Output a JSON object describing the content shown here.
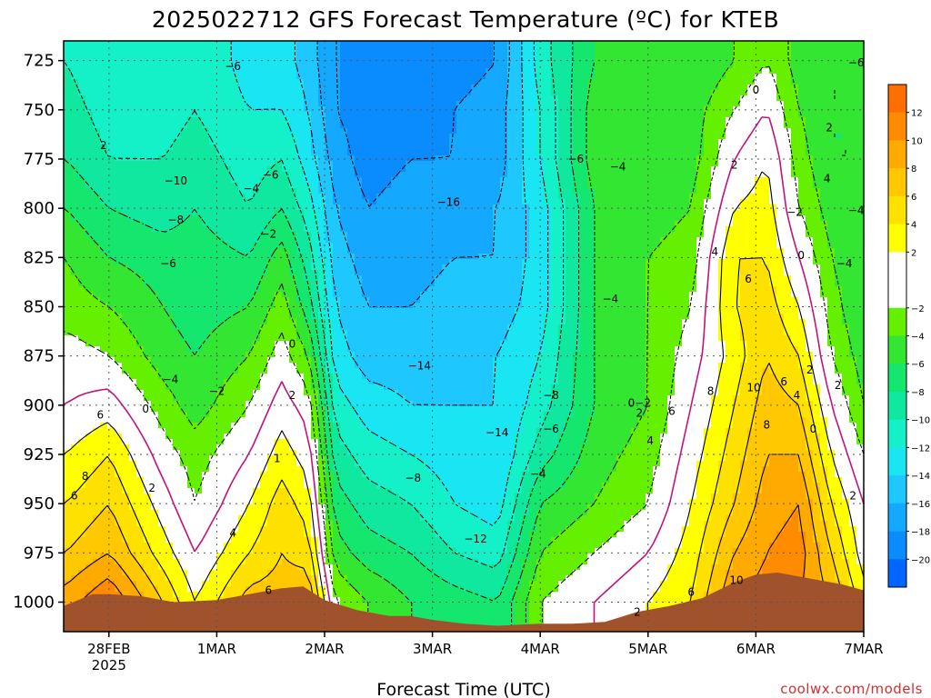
{
  "chart_data": {
    "type": "heatmap",
    "title": "2025022712 GFS Forecast Temperature (ºC) for KTEB",
    "xlabel": "Forecast Time (UTC)",
    "ylabel": "",
    "y_axis": {
      "unit": "hPa",
      "inverted": true,
      "ylim": [
        1015,
        715
      ],
      "ticks": [
        725,
        750,
        775,
        800,
        825,
        850,
        875,
        900,
        925,
        950,
        975,
        1000
      ]
    },
    "x_axis": {
      "unit": "days since 2025-02-27",
      "xlim": [
        0.58,
        8.0
      ],
      "ticks": [
        {
          "label": "28FEB",
          "sub": "2025",
          "x": 1.0
        },
        {
          "label": "1MAR",
          "sub": "",
          "x": 2.0
        },
        {
          "label": "2MAR",
          "sub": "",
          "x": 3.0
        },
        {
          "label": "3MAR",
          "sub": "",
          "x": 4.0
        },
        {
          "label": "4MAR",
          "sub": "",
          "x": 5.0
        },
        {
          "label": "5MAR",
          "sub": "",
          "x": 6.0
        },
        {
          "label": "6MAR",
          "sub": "",
          "x": 7.0
        },
        {
          "label": "7MAR",
          "sub": "",
          "x": 8.0
        }
      ]
    },
    "grid": true,
    "colorbar": {
      "levels": [
        -22,
        -20,
        -18,
        -16,
        -14,
        -12,
        -10,
        -8,
        -6,
        -4,
        -2,
        0,
        2,
        4,
        6,
        8,
        10,
        12,
        14
      ],
      "tick_labels": [
        "-20",
        "-18",
        "-16",
        "-14",
        "-12",
        "-10",
        "-8",
        "-6",
        "-4",
        "-2",
        "2",
        "4",
        "6",
        "8",
        "10",
        "12"
      ],
      "colors": [
        "#0066ff",
        "#0a8cff",
        "#14a8ff",
        "#1ec8ff",
        "#19e6f2",
        "#14f0c8",
        "#10e8a0",
        "#14e66e",
        "#32e632",
        "#64f000",
        "#ffffff",
        "#ffffff",
        "#ffff00",
        "#ffe100",
        "#ffc800",
        "#ffaa00",
        "#ff8c00",
        "#ff6e00"
      ]
    },
    "surface_color": "#a0522d",
    "surface_pressure": [
      [
        0.58,
        1002
      ],
      [
        0.85,
        996
      ],
      [
        1.0,
        996
      ],
      [
        1.3,
        997
      ],
      [
        1.6,
        1000
      ],
      [
        2.0,
        999
      ],
      [
        2.3,
        996
      ],
      [
        2.6,
        993
      ],
      [
        2.8,
        992
      ],
      [
        3.0,
        999
      ],
      [
        3.3,
        1004
      ],
      [
        3.6,
        1007
      ],
      [
        3.8,
        1007
      ],
      [
        4.0,
        1009
      ],
      [
        4.3,
        1011
      ],
      [
        4.6,
        1012
      ],
      [
        5.0,
        1011
      ],
      [
        5.3,
        1011
      ],
      [
        5.6,
        1010
      ],
      [
        5.9,
        1005
      ],
      [
        6.2,
        1002
      ],
      [
        6.5,
        998
      ],
      [
        6.8,
        990
      ],
      [
        7.0,
        986
      ],
      [
        7.2,
        985
      ],
      [
        7.5,
        988
      ],
      [
        7.8,
        991
      ],
      [
        8.0,
        994
      ]
    ],
    "temperature_field": {
      "note": "approximate temperature (°C) by time (rows) and pressure (columns)",
      "pressure_levels": [
        1000,
        975,
        950,
        925,
        900,
        875,
        850,
        825,
        800,
        775,
        750,
        725
      ],
      "times": [
        0.6,
        1.0,
        1.5,
        1.8,
        2.3,
        2.6,
        2.85,
        3.1,
        3.4,
        3.8,
        4.2,
        4.6,
        5.0,
        5.5,
        6.0,
        6.4,
        6.8,
        7.1,
        7.4,
        7.7,
        8.0
      ],
      "values": [
        [
          9,
          6,
          4,
          2,
          0,
          -1,
          -3,
          -4,
          -6,
          -8,
          -9,
          -10
        ],
        [
          12,
          8,
          6,
          4,
          1,
          -2,
          -4,
          -6,
          -8,
          -10,
          -11,
          -12
        ],
        [
          6,
          3,
          1,
          -1,
          -3,
          -5,
          -6,
          -7,
          -9,
          -10,
          -11,
          -12
        ],
        [
          2,
          0,
          -2,
          -3,
          -5,
          -6,
          -7,
          -7,
          -8,
          -9,
          -10,
          -10
        ],
        [
          7,
          4,
          2,
          0,
          -2,
          -4,
          -6,
          -8,
          -10,
          -11,
          -12,
          -13
        ],
        [
          7,
          6,
          5,
          3,
          1,
          -1,
          -3,
          -5,
          -8,
          -10,
          -12,
          -13
        ],
        [
          8,
          5,
          3,
          1,
          -1,
          -4,
          -7,
          -9,
          -11,
          -13,
          -14,
          -15
        ],
        [
          -2,
          -5,
          -7,
          -9,
          -11,
          -13,
          -14,
          -15,
          -16,
          -17,
          -18,
          -18
        ],
        [
          -4,
          -7,
          -9,
          -11,
          -13,
          -15,
          -16,
          -17,
          -18,
          -19,
          -19,
          -20
        ],
        [
          -6,
          -8,
          -10,
          -12,
          -14,
          -15,
          -16,
          -17,
          -17,
          -18,
          -19,
          -19
        ],
        [
          -7,
          -10,
          -12,
          -13,
          -14,
          -15,
          -15,
          -16,
          -17,
          -18,
          -18,
          -19
        ],
        [
          -8,
          -11,
          -13,
          -14,
          -14,
          -14,
          -15,
          -16,
          -16,
          -17,
          -17,
          -18
        ],
        [
          -2,
          -4,
          -6,
          -9,
          -11,
          -12,
          -13,
          -13,
          -13,
          -12,
          -12,
          -11
        ],
        [
          0,
          -2,
          -4,
          -5,
          -6,
          -6,
          -6,
          -6,
          -6,
          -5,
          -5,
          -6
        ],
        [
          2,
          0,
          -2,
          -3,
          -4,
          -4,
          -4,
          -4,
          -5,
          -5,
          -6,
          -6
        ],
        [
          4,
          3,
          2,
          1,
          0,
          -1,
          -2,
          -3,
          -4,
          -5,
          -5,
          -6
        ],
        [
          10,
          8,
          6,
          5,
          4,
          3,
          4,
          4,
          2,
          0,
          -2,
          -4
        ],
        [
          11,
          10,
          9,
          8,
          7,
          6,
          5,
          4,
          3,
          2,
          0,
          -2
        ],
        [
          10,
          11,
          10,
          8,
          6,
          4,
          2,
          0,
          -2,
          -3,
          -4,
          -5
        ],
        [
          8,
          6,
          4,
          2,
          0,
          -2,
          -3,
          -4,
          -5,
          -6,
          -6,
          -6
        ],
        [
          3,
          1,
          0,
          -2,
          -4,
          -5,
          -6,
          -6,
          -6,
          -6,
          -6,
          -6
        ]
      ]
    },
    "contour_labels": [
      {
        "text": "-6",
        "x": 2.15,
        "y": 728
      },
      {
        "text": "0",
        "x": 7.0,
        "y": 740
      },
      {
        "text": "-6",
        "x": 7.93,
        "y": 726
      },
      {
        "text": "2",
        "x": 7.68,
        "y": 759
      },
      {
        "text": "2",
        "x": 0.95,
        "y": 768
      },
      {
        "text": "-10",
        "x": 1.62,
        "y": 786
      },
      {
        "text": "-6",
        "x": 2.5,
        "y": 783
      },
      {
        "text": "-4",
        "x": 2.32,
        "y": 790
      },
      {
        "text": "-6",
        "x": 5.33,
        "y": 775
      },
      {
        "text": "-4",
        "x": 5.72,
        "y": 779
      },
      {
        "text": "2",
        "x": 6.8,
        "y": 778
      },
      {
        "text": "4",
        "x": 7.66,
        "y": 785
      },
      {
        "text": "-16",
        "x": 4.15,
        "y": 797
      },
      {
        "text": "-2",
        "x": 7.36,
        "y": 802
      },
      {
        "text": "-4",
        "x": 7.93,
        "y": 801
      },
      {
        "text": "-8",
        "x": 1.62,
        "y": 806
      },
      {
        "text": "-2",
        "x": 2.48,
        "y": 813
      },
      {
        "text": "4",
        "x": 6.62,
        "y": 822
      },
      {
        "text": "-6",
        "x": 1.55,
        "y": 828
      },
      {
        "text": "0",
        "x": 7.42,
        "y": 824
      },
      {
        "text": "-4",
        "x": 7.82,
        "y": 828
      },
      {
        "text": "6",
        "x": 6.93,
        "y": 836
      },
      {
        "text": "-4",
        "x": 5.65,
        "y": 846
      },
      {
        "text": "0",
        "x": 2.7,
        "y": 869
      },
      {
        "text": "-14",
        "x": 3.88,
        "y": 880
      },
      {
        "text": "2",
        "x": 7.5,
        "y": 882
      },
      {
        "text": "-4",
        "x": 1.57,
        "y": 887
      },
      {
        "text": "2",
        "x": 7.76,
        "y": 890
      },
      {
        "text": "-2",
        "x": 2.0,
        "y": 893
      },
      {
        "text": "8",
        "x": 6.58,
        "y": 893
      },
      {
        "text": "10",
        "x": 6.98,
        "y": 891
      },
      {
        "text": "6",
        "x": 7.26,
        "y": 888
      },
      {
        "text": "4",
        "x": 7.38,
        "y": 895
      },
      {
        "text": "-8",
        "x": 5.1,
        "y": 895
      },
      {
        "text": "0-2",
        "x": 5.92,
        "y": 899
      },
      {
        "text": "2",
        "x": 2.7,
        "y": 895
      },
      {
        "text": "0",
        "x": 1.34,
        "y": 902
      },
      {
        "text": "6",
        "x": 6.22,
        "y": 903
      },
      {
        "text": "2",
        "x": 5.92,
        "y": 904
      },
      {
        "text": "6",
        "x": 0.92,
        "y": 905
      },
      {
        "text": "8",
        "x": 7.1,
        "y": 910
      },
      {
        "text": "0",
        "x": 7.53,
        "y": 912
      },
      {
        "text": "-6",
        "x": 5.1,
        "y": 912
      },
      {
        "text": "-14",
        "x": 4.6,
        "y": 914
      },
      {
        "text": "4",
        "x": 6.02,
        "y": 918
      },
      {
        "text": "1",
        "x": 2.56,
        "y": 927
      },
      {
        "text": "8",
        "x": 0.78,
        "y": 936
      },
      {
        "text": "-8",
        "x": 3.82,
        "y": 937
      },
      {
        "text": "-4",
        "x": 4.98,
        "y": 935
      },
      {
        "text": "2",
        "x": 1.4,
        "y": 942
      },
      {
        "text": "6",
        "x": 0.68,
        "y": 946
      },
      {
        "text": "2",
        "x": 7.9,
        "y": 946
      },
      {
        "text": "4",
        "x": 2.15,
        "y": 965
      },
      {
        "text": "-12",
        "x": 4.4,
        "y": 968
      },
      {
        "text": "10",
        "x": 6.82,
        "y": 989
      },
      {
        "text": "6",
        "x": 2.48,
        "y": 994
      },
      {
        "text": "6",
        "x": 6.4,
        "y": 995
      },
      {
        "text": "2",
        "x": 5.9,
        "y": 1005
      }
    ],
    "credit": "coolwx.com/models"
  }
}
